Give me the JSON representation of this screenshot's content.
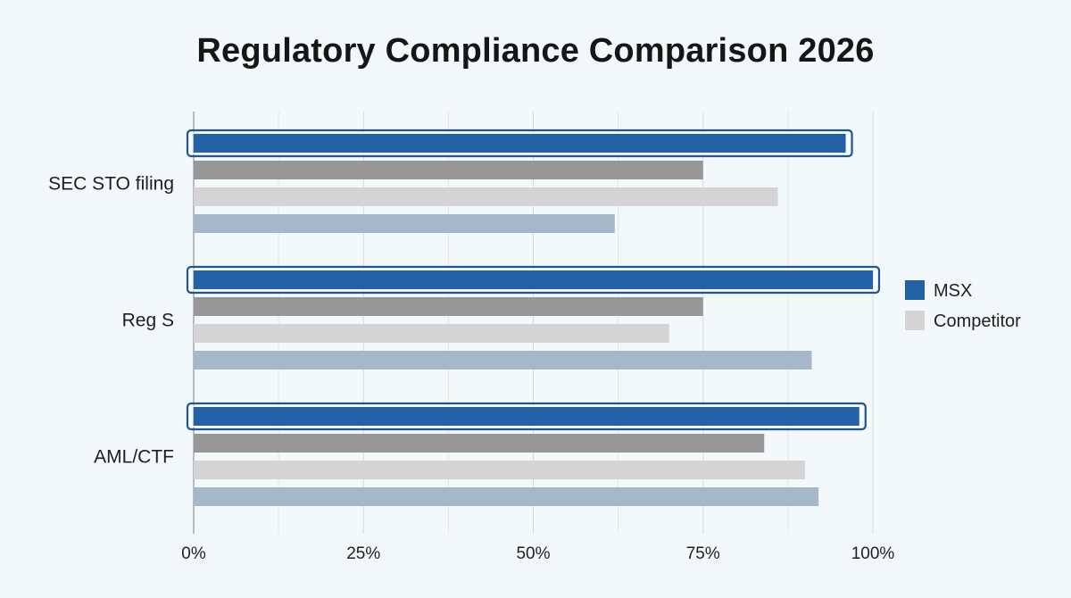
{
  "chart_data": {
    "type": "bar",
    "orientation": "horizontal",
    "title": "Regulatory Compliance Comparison 2026",
    "categories": [
      "SEC STO filing",
      "Reg S",
      "AML/CTF"
    ],
    "series": [
      {
        "name": "MSX",
        "color": "#2462a8",
        "highlighted": true,
        "values": [
          96,
          100,
          98
        ]
      },
      {
        "color": "#979797",
        "values": [
          75,
          75,
          84
        ]
      },
      {
        "color": "#d4d4d4",
        "values": [
          86,
          70,
          90
        ]
      },
      {
        "color": "#a6b7c9",
        "values": [
          62,
          91,
          92
        ]
      }
    ],
    "xlim": [
      0,
      100
    ],
    "x_ticks": [
      "0%",
      "25%",
      "50%",
      "75%",
      "100%"
    ],
    "grid": true,
    "legend": {
      "position": "right",
      "entries": [
        {
          "label": "MSX",
          "color": "#2462a8"
        },
        {
          "label": "Competitor",
          "color": "#d4d4d4"
        }
      ]
    }
  }
}
